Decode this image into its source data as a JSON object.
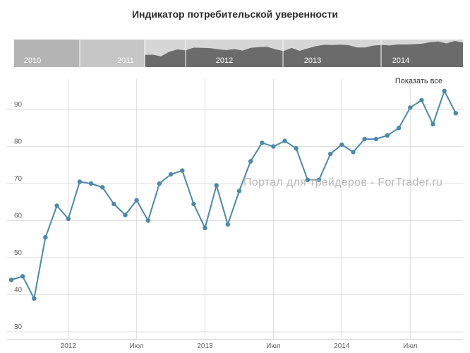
{
  "title": "Индикатор потребительской уверенности",
  "show_all_label": "Показать все",
  "watermark": "Портал для трейдеров - ForTrader.ru",
  "colors": {
    "line": "#4a89ac",
    "grid": "#dedede",
    "axis_line": "#cfcfcf",
    "axis_label": "#606060",
    "navigator_dark": "#6b6b6b",
    "navigator_light": "#d6d6d6",
    "navigator_mask_2010": "#b4b4b4",
    "navigator_mask_2011": "#c6c6c6",
    "navigator_label": "#ffffff",
    "title": "#2b2b2b",
    "watermark": "#bcbcbc"
  },
  "chart_data": {
    "type": "line",
    "title": "Индикатор потребительской уверенности",
    "xlabel": "",
    "ylabel": "",
    "grid": true,
    "legend": false,
    "ylim": [
      30,
      97
    ],
    "yticks": [
      30,
      40,
      50,
      60,
      70,
      80,
      90
    ],
    "x": [
      "2011-08",
      "2011-09",
      "2011-10",
      "2011-11",
      "2011-12",
      "2012-01",
      "2012-02",
      "2012-03",
      "2012-04",
      "2012-05",
      "2012-06",
      "2012-07",
      "2012-08",
      "2012-09",
      "2012-10",
      "2012-11",
      "2012-12",
      "2013-01",
      "2013-02",
      "2013-03",
      "2013-04",
      "2013-05",
      "2013-06",
      "2013-07",
      "2013-08",
      "2013-09",
      "2013-10",
      "2013-11",
      "2013-12",
      "2014-01",
      "2014-02",
      "2014-03",
      "2014-04",
      "2014-05",
      "2014-06",
      "2014-07",
      "2014-08",
      "2014-09",
      "2014-10",
      "2014-11"
    ],
    "values": [
      44,
      45,
      39,
      55.5,
      64,
      60.5,
      70.5,
      70,
      69,
      64.5,
      61.5,
      65.5,
      60,
      70,
      72.5,
      73.5,
      64.5,
      58,
      69.5,
      59,
      68,
      76,
      81,
      80,
      81.5,
      79.5,
      71,
      71,
      78,
      80.5,
      78.5,
      82,
      82,
      83,
      85,
      90.5,
      92.5,
      86,
      95,
      89
    ],
    "xticks": [
      {
        "label": "2012",
        "month_index": 5
      },
      {
        "label": "Июл",
        "month_index": 11
      },
      {
        "label": "2013",
        "month_index": 17
      },
      {
        "label": "Июл",
        "month_index": 23
      },
      {
        "label": "2014",
        "month_index": 29
      },
      {
        "label": "Июл",
        "month_index": 35
      }
    ],
    "navigator_years": [
      "2010",
      "2011",
      "2012",
      "2013",
      "2014"
    ]
  }
}
